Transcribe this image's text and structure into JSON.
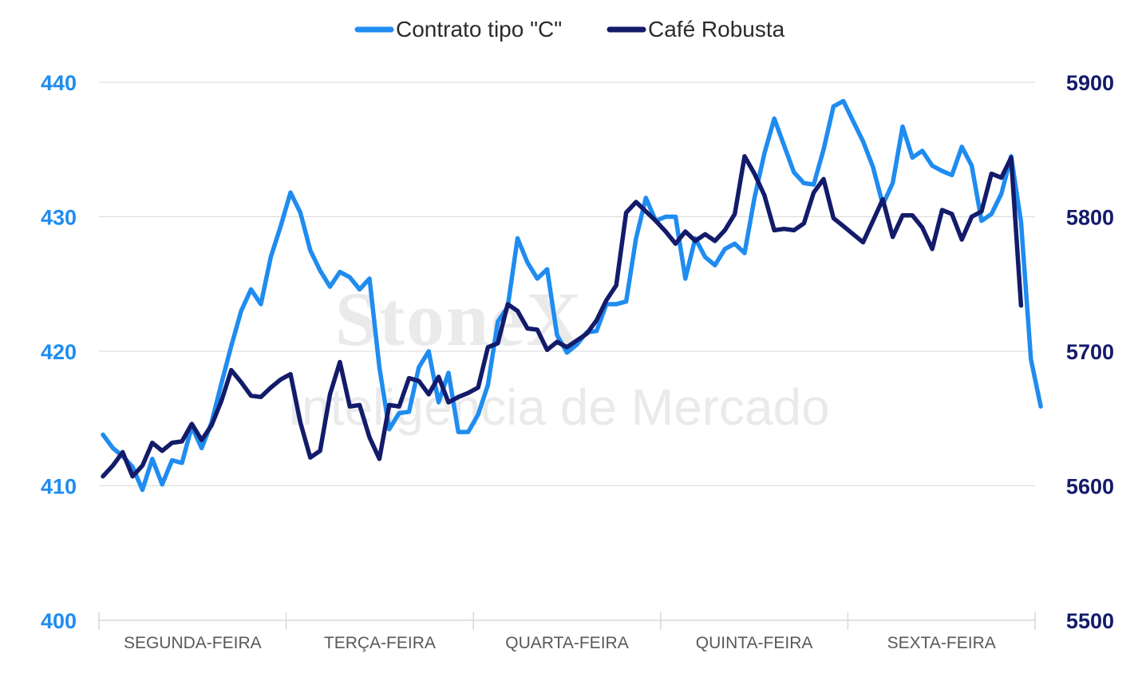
{
  "chart_data": {
    "type": "line",
    "categories": [
      "SEGUNDA-FEIRA",
      "TERÇA-FEIRA",
      "QUARTA-FEIRA",
      "QUINTA-FEIRA",
      "SEXTA-FEIRA"
    ],
    "x": [
      0,
      1,
      2,
      3,
      4,
      5,
      6,
      7,
      8,
      9,
      10,
      11,
      12,
      13,
      14,
      15,
      16,
      17,
      18,
      19,
      20,
      21,
      22,
      23,
      24,
      25,
      26,
      27,
      28,
      29,
      30,
      31,
      32,
      33,
      34,
      35,
      36,
      37,
      38,
      39,
      40,
      41,
      42,
      43,
      44,
      45,
      46,
      47,
      48,
      49,
      50,
      51,
      52,
      53,
      54,
      55,
      56,
      57,
      58,
      59,
      60,
      61,
      62,
      63,
      64,
      65,
      66,
      67,
      68,
      69,
      70,
      71,
      72,
      73,
      74,
      75,
      76,
      77,
      78,
      79,
      80,
      81,
      82,
      83,
      84,
      85,
      86,
      87,
      88,
      89,
      90,
      91,
      92
    ],
    "series": [
      {
        "name": "Contrato tipo \"C\"",
        "color": "#1f8cf0",
        "axis": "left",
        "values": [
          413.8,
          412.8,
          412.2,
          411.4,
          409.7,
          412.0,
          410.1,
          411.9,
          411.7,
          414.4,
          412.8,
          414.7,
          417.6,
          420.4,
          423.0,
          424.6,
          423.5,
          427.0,
          429.3,
          431.8,
          430.3,
          427.5,
          426.0,
          424.8,
          425.9,
          425.5,
          424.6,
          425.4,
          418.8,
          414.2,
          415.4,
          415.5,
          418.8,
          420.0,
          416.2,
          418.4,
          414.0,
          414.0,
          415.3,
          417.5,
          422.2,
          423.3,
          428.4,
          426.6,
          425.4,
          426.1,
          421.2,
          419.9,
          420.5,
          421.4,
          421.5,
          423.5,
          423.5,
          423.7,
          428.4,
          431.4,
          429.7,
          430.0,
          430.0,
          425.4,
          428.4,
          427.0,
          426.4,
          427.6,
          428.0,
          427.3,
          431.4,
          434.7,
          437.3,
          435.3,
          433.3,
          432.5,
          432.4,
          435.0,
          438.2,
          438.6,
          437.1,
          435.6,
          433.7,
          430.9,
          432.5,
          436.7,
          434.4,
          434.9,
          433.8,
          433.4,
          433.1,
          435.2,
          433.8,
          429.7,
          430.2,
          431.7,
          434.5
        ]
      },
      {
        "name": "Café Robusta",
        "color": "#131b6a",
        "axis": "right",
        "values": [
          5607,
          5615,
          5625,
          5607,
          5615,
          5632,
          5626,
          5632,
          5633,
          5646,
          5634,
          5645,
          5663,
          5686,
          5677,
          5667,
          5666,
          5673,
          5679,
          5683,
          5647,
          5621,
          5626,
          5668,
          5692,
          5659,
          5660,
          5636,
          5620,
          5660,
          5659,
          5680,
          5678,
          5668,
          5681,
          5662,
          5666,
          5669,
          5673,
          5703,
          5706,
          5735,
          5730,
          5717,
          5716,
          5701,
          5707,
          5703,
          5708,
          5713,
          5723,
          5738,
          5749,
          5803,
          5811,
          5804,
          5797,
          5789,
          5780,
          5789,
          5782,
          5787,
          5782,
          5790,
          5802,
          5845,
          5832,
          5816,
          5790,
          5791,
          5790,
          5795,
          5818,
          5828,
          5799,
          5793,
          5787,
          5781,
          5797,
          5813,
          5785,
          5801,
          5801,
          5792,
          5776,
          5805,
          5802,
          5783,
          5800,
          5804,
          5832,
          5829,
          5844
        ]
      }
    ],
    "tail": {
      "Contrato tipo \"C\"": [
        429.6,
        419.4,
        415.9
      ],
      "Café Robusta": [
        5734
      ]
    },
    "y_left": {
      "ticks": [
        "400",
        "410",
        "420",
        "430",
        "440"
      ],
      "ylim": [
        400,
        440
      ],
      "color": "#1f8cf0"
    },
    "y_right": {
      "ticks": [
        "5500",
        "5600",
        "5700",
        "5800",
        "5900"
      ],
      "ylim": [
        5500,
        5900
      ],
      "color": "#131b6a"
    },
    "grid": true,
    "legend": "top-center",
    "title": "",
    "xlabel": "",
    "ylabel": ""
  },
  "watermark": {
    "line1": "StoneX",
    "line2": "Inteligência de Mercado"
  }
}
